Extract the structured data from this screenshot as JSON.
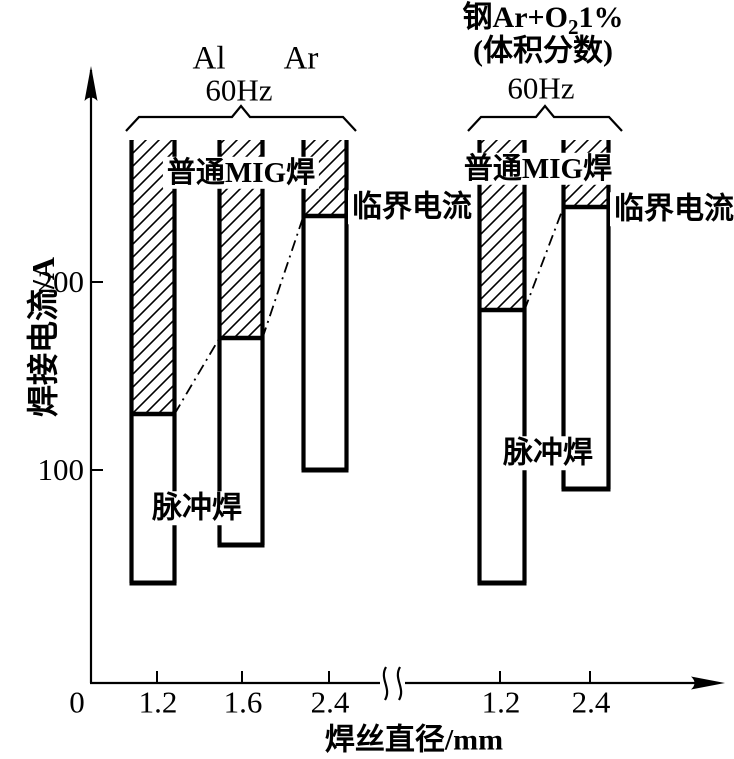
{
  "colors": {
    "ink": "#000000",
    "background": "#ffffff"
  },
  "figure": {
    "y_axis_title": "焊接电流/A",
    "x_axis_title": "焊丝直径/mm",
    "origin_label": "0",
    "y_tick_labels": [
      "200",
      "100"
    ],
    "left_group": {
      "material_label": "Al",
      "gas_label": "Ar",
      "freq_label": "60Hz",
      "x_tick_labels": [
        "1.2",
        "1.6",
        "2.4"
      ]
    },
    "right_group": {
      "header_pre": "钢Ar+O",
      "header_sub": "2",
      "header_post": "1%",
      "header_line2": "(体积分数)",
      "freq_label": "60Hz",
      "x_tick_labels": [
        "1.2",
        "2.4"
      ]
    },
    "region_labels": {
      "ordinary_mig_left": "普通MIG焊",
      "ordinary_mig_right": "普通MIG焊",
      "pulse_left": "脉冲焊",
      "pulse_right": "脉冲焊",
      "critical_left": "临界电流",
      "critical_right": "临界电流"
    }
  },
  "chart_data": {
    "type": "bar",
    "title": "",
    "ylabel": "焊接电流/A",
    "xlabel": "焊丝直径/mm",
    "ylim": [
      0,
      275
    ],
    "y_ticks": [
      100,
      200
    ],
    "x_axis_break_between_groups": true,
    "legend": {
      "hatched_region": "普通MIG焊",
      "open_region": "脉冲焊",
      "boundary_line": "临界电流"
    },
    "groups": [
      {
        "name": "Al, Ar, 60Hz",
        "bars": [
          {
            "wire_diameter_mm": "1.2",
            "pulse_min_A": 40,
            "critical_current_A": 130,
            "bar_top_A": 275,
            "truncated_top": true
          },
          {
            "wire_diameter_mm": "1.6",
            "pulse_min_A": 60,
            "critical_current_A": 170,
            "bar_top_A": 275,
            "truncated_top": true
          },
          {
            "wire_diameter_mm": "2.4",
            "pulse_min_A": 100,
            "critical_current_A": 235,
            "bar_top_A": 275,
            "truncated_top": true
          }
        ]
      },
      {
        "name": "钢 Ar+O2 1%(体积分数), 60Hz",
        "bars": [
          {
            "wire_diameter_mm": "1.2",
            "pulse_min_A": 40,
            "critical_current_A": 185,
            "bar_top_A": 275,
            "truncated_top": true
          },
          {
            "wire_diameter_mm": "2.4",
            "pulse_min_A": 90,
            "critical_current_A": 240,
            "bar_top_A": 275,
            "truncated_top": true
          }
        ]
      }
    ]
  }
}
